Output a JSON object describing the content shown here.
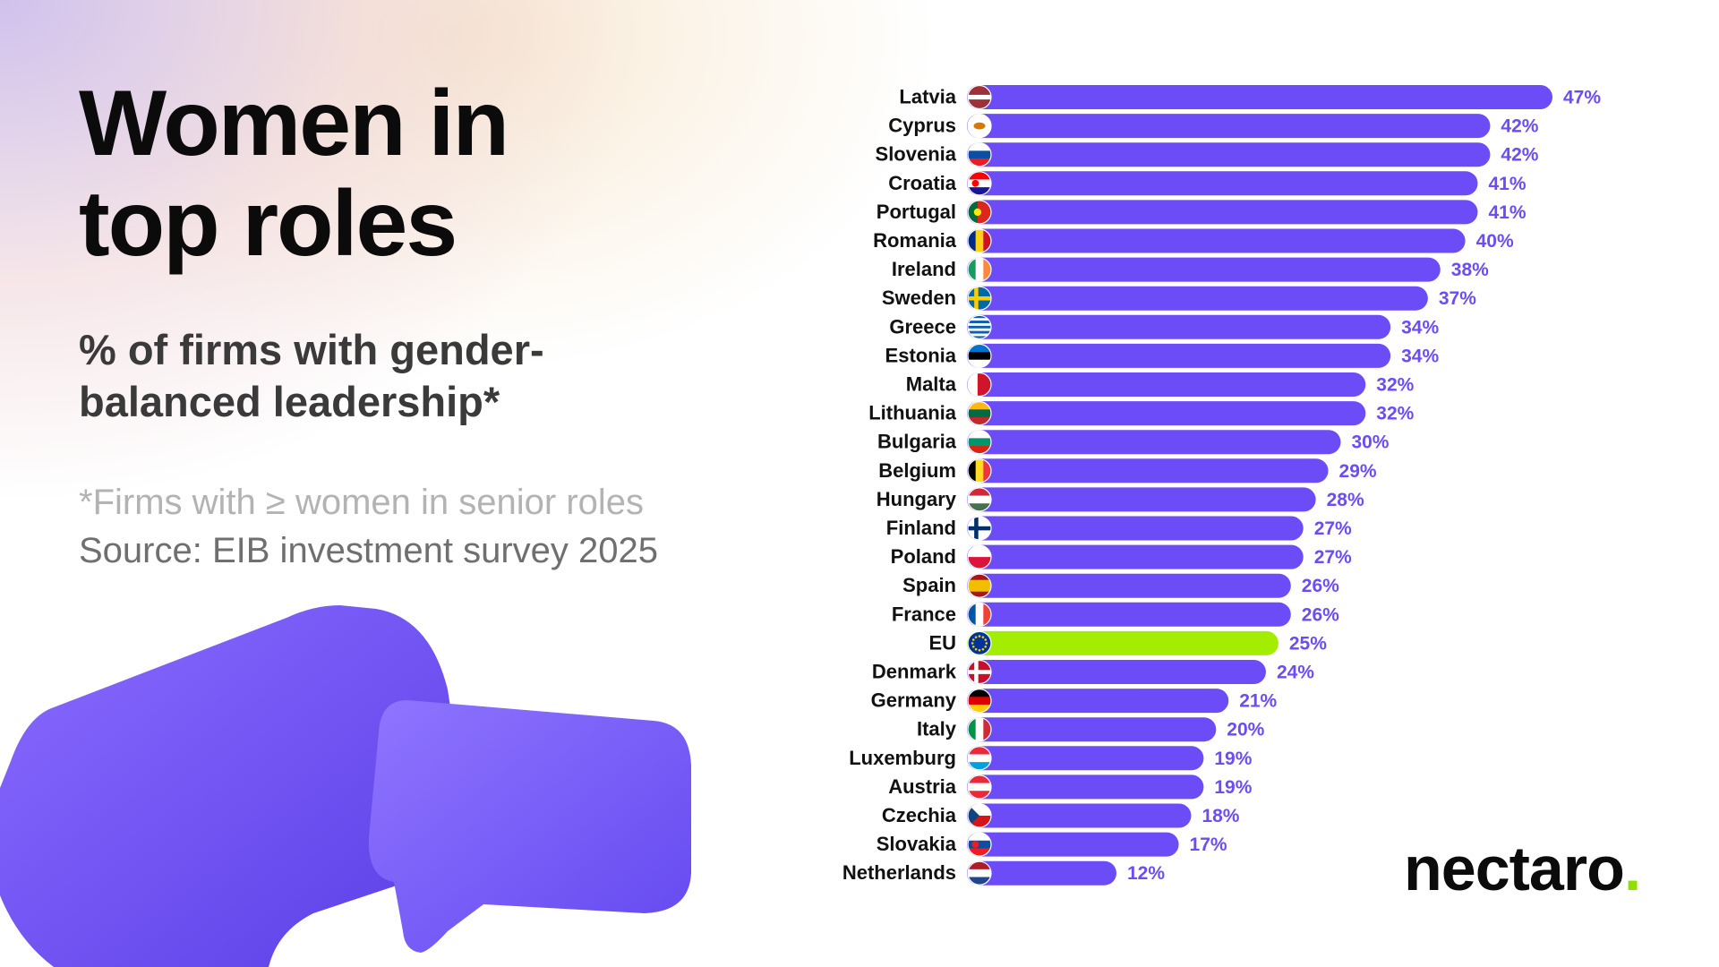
{
  "header": {
    "title": "Women in top roles",
    "subtitle": "% of firms with gender-balanced leadership*",
    "note": "*Firms with ≥ women in senior roles",
    "source": "Source: EIB investment survey 2025"
  },
  "brand": {
    "name": "nectaro",
    "dot": "."
  },
  "colors": {
    "bar": "#6b4cf6",
    "highlight": "#a3ee00",
    "label": "#6b4cf6",
    "text": "#111111"
  },
  "chart_data": {
    "type": "bar",
    "orientation": "horizontal",
    "title": "Women in top roles",
    "xlabel": "% of firms with gender-balanced leadership",
    "ylabel": "",
    "xlim": [
      0,
      47
    ],
    "value_suffix": "%",
    "highlight_category": "EU",
    "categories": [
      "Latvia",
      "Cyprus",
      "Slovenia",
      "Croatia",
      "Portugal",
      "Romania",
      "Ireland",
      "Sweden",
      "Greece",
      "Estonia",
      "Malta",
      "Lithuania",
      "Bulgaria",
      "Belgium",
      "Hungary",
      "Finland",
      "Poland",
      "Spain",
      "France",
      "EU",
      "Denmark",
      "Germany",
      "Italy",
      "Luxemburg",
      "Austria",
      "Czechia",
      "Slovakia",
      "Netherlands"
    ],
    "values": [
      47,
      42,
      42,
      41,
      41,
      40,
      38,
      37,
      34,
      34,
      32,
      32,
      30,
      29,
      28,
      27,
      27,
      26,
      26,
      25,
      24,
      21,
      20,
      19,
      19,
      18,
      17,
      12
    ],
    "flag_icons": [
      "latvia-flag-icon",
      "cyprus-flag-icon",
      "slovenia-flag-icon",
      "croatia-flag-icon",
      "portugal-flag-icon",
      "romania-flag-icon",
      "ireland-flag-icon",
      "sweden-flag-icon",
      "greece-flag-icon",
      "estonia-flag-icon",
      "malta-flag-icon",
      "lithuania-flag-icon",
      "bulgaria-flag-icon",
      "belgium-flag-icon",
      "hungary-flag-icon",
      "finland-flag-icon",
      "poland-flag-icon",
      "spain-flag-icon",
      "france-flag-icon",
      "eu-flag-icon",
      "denmark-flag-icon",
      "germany-flag-icon",
      "italy-flag-icon",
      "luxembourg-flag-icon",
      "austria-flag-icon",
      "czechia-flag-icon",
      "slovakia-flag-icon",
      "netherlands-flag-icon"
    ]
  }
}
